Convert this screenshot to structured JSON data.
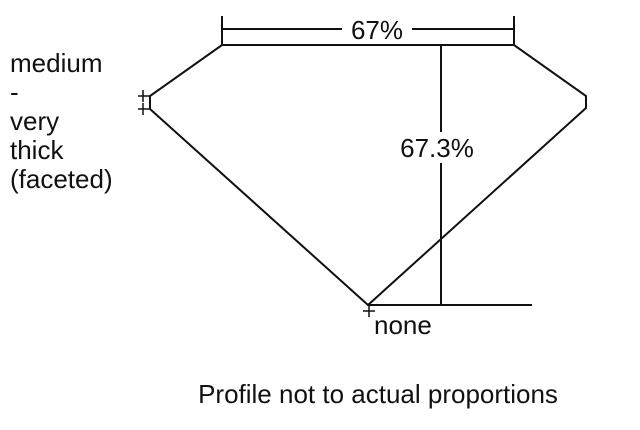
{
  "diagram": {
    "table_label": "67%",
    "depth_label": "67.3%",
    "culet_label": "none",
    "girdle_label_lines": [
      "medium",
      "-",
      "very",
      "thick",
      "(faceted)"
    ],
    "note": "Profile not to actual proportions",
    "line_color": "#111111"
  }
}
